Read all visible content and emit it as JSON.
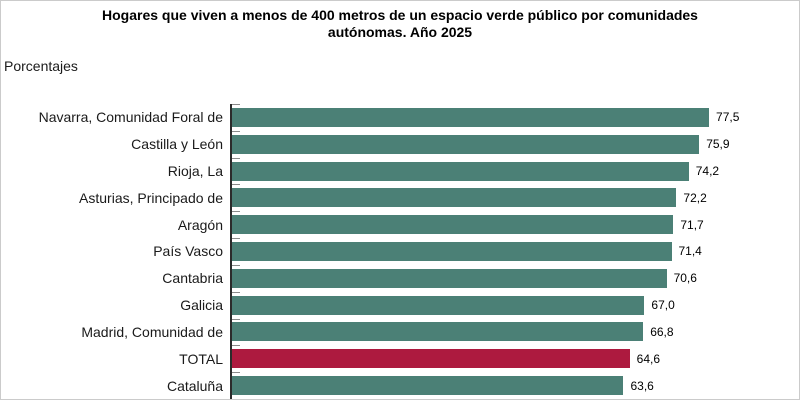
{
  "page": {
    "title_lines": [
      "Hogares que viven a menos de 400 metros de un espacio verde público por comunidades",
      "autónomas. Año 2025"
    ],
    "units_label": "Porcentajes"
  },
  "chart_data": {
    "type": "bar",
    "orientation": "horizontal",
    "title": "Hogares que viven a menos de 400 metros de un espacio verde público por comunidades autónomas. Año 2025",
    "xlabel": "Porcentajes",
    "ylabel": "",
    "categories": [
      "Navarra, Comunidad Foral de",
      "Castilla y León",
      "Rioja, La",
      "Asturias, Principado de",
      "Aragón",
      "País Vasco",
      "Cantabria",
      "Galicia",
      "Madrid, Comunidad de",
      "TOTAL",
      "Cataluña"
    ],
    "values": [
      77.5,
      75.9,
      74.2,
      72.2,
      71.7,
      71.4,
      70.6,
      67.0,
      66.8,
      64.6,
      63.6
    ],
    "value_labels": [
      "77,5",
      "75,9",
      "74,2",
      "72,2",
      "71,7",
      "71,4",
      "70,6",
      "67,0",
      "66,8",
      "64,6",
      "63,6"
    ],
    "highlight_category": "TOTAL",
    "xlim": [
      0,
      90
    ],
    "grid": false,
    "legend": false,
    "axis_position": "left",
    "colors": {
      "bar": "#4B8076",
      "highlight": "#AD1A3F",
      "axis": "#2b2b2b",
      "tick": "#8a8a8a"
    }
  }
}
